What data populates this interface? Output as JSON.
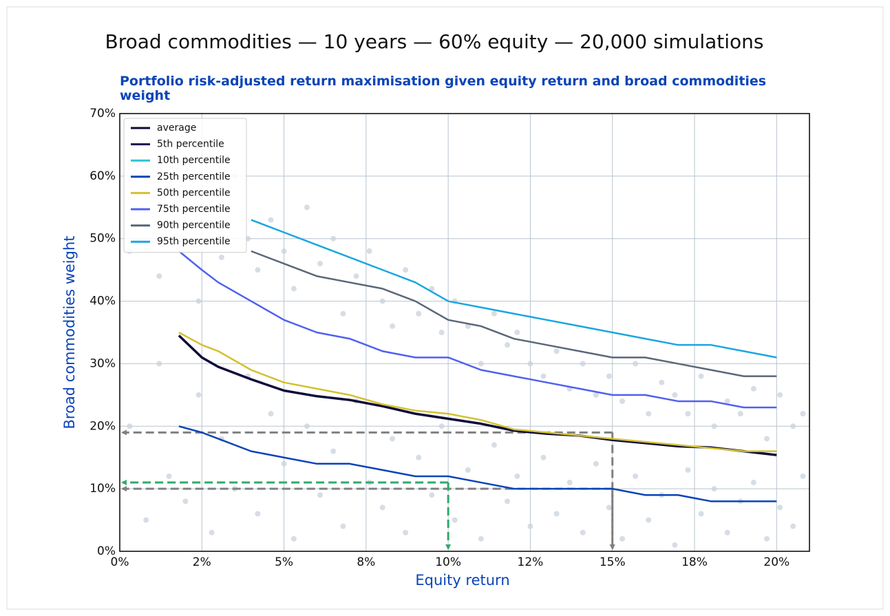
{
  "chart_data": {
    "type": "line",
    "suptitle": "Broad commodities — 10 years — 60% equity — 20,000 simulations",
    "title": "Portfolio risk-adjusted return maximisation given equity return and broad commodities weight",
    "xlabel": "Equity return",
    "ylabel": "Broad commodities weight",
    "xlim": [
      0,
      21
    ],
    "ylim": [
      0,
      70
    ],
    "xticks": [
      {
        "value": 0,
        "label": "0%"
      },
      {
        "value": 2.5,
        "label": "2%"
      },
      {
        "value": 5,
        "label": "5%"
      },
      {
        "value": 7.5,
        "label": "8%"
      },
      {
        "value": 10,
        "label": "10%"
      },
      {
        "value": 12.5,
        "label": "12%"
      },
      {
        "value": 15,
        "label": "15%"
      },
      {
        "value": 17.5,
        "label": "18%"
      },
      {
        "value": 20,
        "label": "20%"
      }
    ],
    "yticks": [
      {
        "value": 0,
        "label": "0%"
      },
      {
        "value": 10,
        "label": "10%"
      },
      {
        "value": 20,
        "label": "20%"
      },
      {
        "value": 30,
        "label": "30%"
      },
      {
        "value": 40,
        "label": "40%"
      },
      {
        "value": 50,
        "label": "50%"
      },
      {
        "value": 60,
        "label": "60%"
      },
      {
        "value": 70,
        "label": "70%"
      }
    ],
    "grid": true,
    "legend": "upper left",
    "x": [
      1.8,
      2.5,
      3,
      4,
      5,
      6,
      7,
      8,
      9,
      10,
      11,
      12,
      13,
      14,
      15,
      16,
      17,
      18,
      19,
      20
    ],
    "series": [
      {
        "name": "average",
        "color": "#0d0a3a",
        "values": [
          34.5,
          31,
          29.5,
          27.5,
          25.7,
          24.8,
          24.2,
          23.2,
          22,
          21.2,
          20.4,
          19.3,
          18.8,
          18.5,
          17.8,
          17.3,
          16.8,
          16.6,
          16,
          15.4
        ]
      },
      {
        "name": "5th percentile",
        "color": "#1a1850",
        "values": [
          null,
          null,
          null,
          null,
          null,
          null,
          null,
          null,
          null,
          null,
          null,
          null,
          null,
          null,
          null,
          null,
          null,
          null,
          null,
          null
        ]
      },
      {
        "name": "10th percentile",
        "color": "#2ec4d0",
        "values": [
          null,
          null,
          null,
          null,
          null,
          null,
          null,
          null,
          null,
          null,
          null,
          null,
          null,
          null,
          null,
          null,
          null,
          null,
          null,
          null
        ]
      },
      {
        "name": "25th percentile",
        "color": "#0a44b8",
        "values": [
          20,
          19,
          18,
          16,
          15,
          14,
          14,
          13,
          12,
          12,
          11,
          10,
          10,
          10,
          10,
          9,
          9,
          8,
          8,
          8
        ]
      },
      {
        "name": "50th percentile",
        "color": "#d4c030",
        "values": [
          35,
          33,
          32,
          29,
          27,
          26,
          25,
          23.5,
          22.5,
          22,
          21,
          19.5,
          19,
          18.5,
          18,
          17.5,
          17,
          16.5,
          16,
          16
        ]
      },
      {
        "name": "75th percentile",
        "color": "#5060f0",
        "values": [
          48,
          45,
          43,
          40,
          37,
          35,
          34,
          32,
          31,
          31,
          29,
          28,
          27,
          26,
          25,
          25,
          24,
          24,
          23,
          23
        ]
      },
      {
        "name": "90th percentile",
        "color": "#5a6878",
        "values": [
          null,
          null,
          null,
          48,
          46,
          44,
          43,
          42,
          40,
          37,
          36,
          34,
          33,
          32,
          31,
          31,
          30,
          29,
          28,
          28
        ]
      },
      {
        "name": "95th percentile",
        "color": "#1aa6e0",
        "values": [
          null,
          null,
          null,
          53,
          51,
          49,
          47,
          45,
          43,
          40,
          39,
          38,
          37,
          36,
          35,
          34,
          33,
          33,
          32,
          31
        ]
      }
    ],
    "scatter": {
      "color": "#c8d2dc",
      "x": [
        0.3,
        0.8,
        1.2,
        1.5,
        2.0,
        2.4,
        2.8,
        3.1,
        3.5,
        3.9,
        4.2,
        4.6,
        5.0,
        5.3,
        5.7,
        6.1,
        6.5,
        6.8,
        7.2,
        7.6,
        8.0,
        8.3,
        8.7,
        9.1,
        9.5,
        9.8,
        10.2,
        10.6,
        11.0,
        11.4,
        11.8,
        12.1,
        12.5,
        12.9,
        13.3,
        13.7,
        14.1,
        14.5,
        14.9,
        15.3,
        15.7,
        16.1,
        16.5,
        16.9,
        17.3,
        17.7,
        18.1,
        18.5,
        18.9,
        19.3,
        19.7,
        20.1,
        20.5,
        20.8,
        0.3,
        0.8,
        1.2,
        1.5,
        2.0,
        2.4,
        2.8,
        3.1,
        3.5,
        3.9,
        4.2,
        4.6,
        5.0,
        5.3,
        5.7,
        6.1,
        6.5,
        6.8,
        7.2,
        7.6,
        8.0,
        8.3,
        8.7,
        9.1,
        9.5,
        9.8,
        10.2,
        10.6,
        11.0,
        11.4,
        11.8,
        12.1,
        12.5,
        12.9,
        13.3,
        13.7,
        14.1,
        14.5,
        14.9,
        15.3,
        15.7,
        16.1,
        16.5,
        16.9,
        17.3,
        17.7,
        18.1,
        18.5,
        18.9,
        19.3,
        19.7,
        20.1,
        20.5,
        20.8
      ],
      "y": [
        48,
        52,
        44,
        58,
        62,
        40,
        55,
        47,
        60,
        50,
        45,
        53,
        48,
        42,
        55,
        46,
        50,
        38,
        44,
        48,
        40,
        36,
        45,
        38,
        42,
        35,
        40,
        36,
        30,
        38,
        33,
        35,
        30,
        28,
        32,
        26,
        30,
        25,
        28,
        24,
        30,
        22,
        27,
        25,
        22,
        28,
        20,
        24,
        22,
        26,
        18,
        25,
        20,
        22,
        20,
        5,
        30,
        12,
        8,
        25,
        3,
        18,
        10,
        28,
        6,
        22,
        14,
        2,
        20,
        9,
        16,
        4,
        24,
        11,
        7,
        18,
        3,
        15,
        9,
        20,
        5,
        13,
        2,
        17,
        8,
        12,
        4,
        15,
        6,
        11,
        3,
        14,
        7,
        2,
        12,
        5,
        9,
        1,
        13,
        6,
        10,
        3,
        8,
        11,
        2,
        7,
        4,
        12
      ]
    },
    "guides": [
      {
        "color": "#808080",
        "x": 15,
        "y": 19
      },
      {
        "color": "#808080",
        "x": 15,
        "y": 10
      },
      {
        "color": "#2eaa6a",
        "x": 10,
        "y": 11
      }
    ]
  }
}
